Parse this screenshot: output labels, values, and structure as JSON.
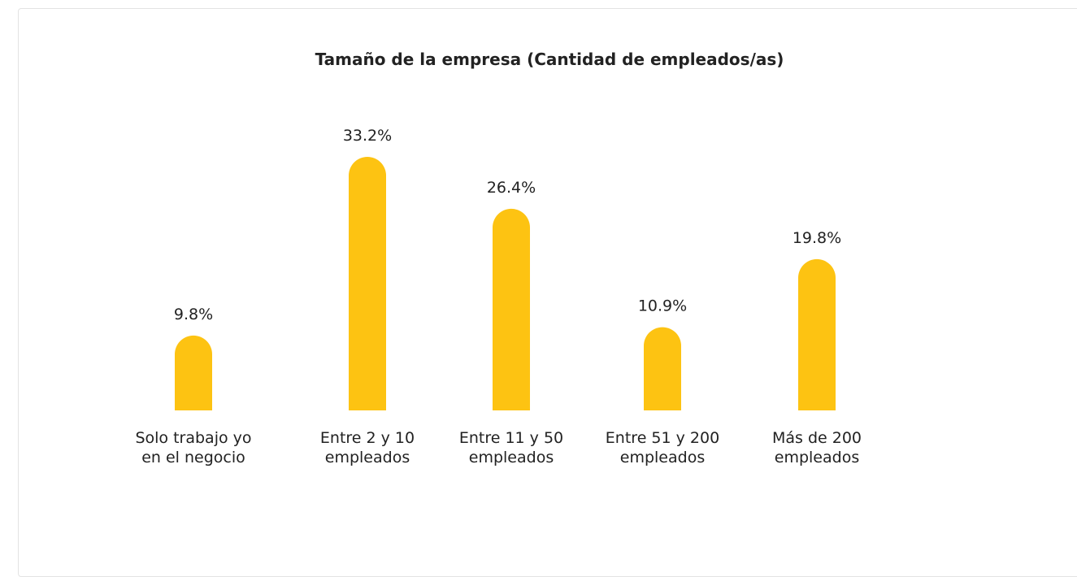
{
  "chart_data": {
    "type": "bar",
    "title": "Tamaño de la empresa (Cantidad de empleados/as)",
    "categories": [
      "Solo trabajo yo en el negocio",
      "Entre 2 y 10 empleados",
      "Entre 11 y 50 empleados",
      "Entre 51 y 200 empleados",
      "Más de 200 empleados"
    ],
    "values": [
      9.8,
      33.2,
      26.4,
      10.9,
      19.8
    ],
    "value_labels": [
      "9.8%",
      "33.2%",
      "26.4%",
      "10.9%",
      "19.8%"
    ],
    "color": "#fdc312"
  }
}
